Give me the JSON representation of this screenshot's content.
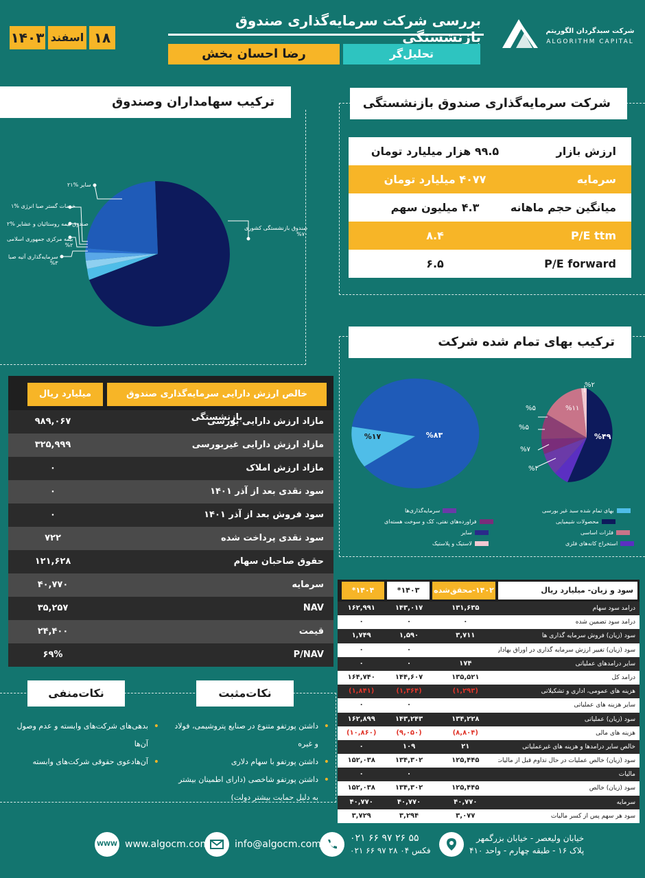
{
  "header": {
    "title": "بررسی  شرکت سرمایه‌گذاری صندوق بازنشستگی",
    "analyst_role": "تحلیل‌گر",
    "analyst_name": "رضا احسان بخش",
    "date_day": "۱۸",
    "date_month": "اسفند",
    "date_year": "۱۴۰۳",
    "logo_fa": "شرکت سبدگردان الگوریتم",
    "logo_en": "ALGORITHM CAPITAL"
  },
  "company_panel": {
    "title": "شرکت سرمایه‌گذاری صندوق بازنشستگی",
    "rows": [
      {
        "label": "ارزش بازار",
        "value": "۹۹.۵ هزار میلیارد تومان",
        "style": "w"
      },
      {
        "label": "سرمایه",
        "value": "۴۰۷۷ میلیارد تومان",
        "style": "y"
      },
      {
        "label": "میانگین حجم ماهانه",
        "value": "۴.۳ میلیون سهم",
        "style": "w"
      },
      {
        "label": "P/E ttm",
        "value": "۸.۴",
        "style": "y"
      },
      {
        "label": "P/E forward",
        "value": "۶.۵",
        "style": "w"
      }
    ]
  },
  "shareholders_panel": {
    "title": "ترکیب سهامداران وصندوق",
    "labels": [
      {
        "name": "سایر",
        "pct": "%۲۱"
      },
      {
        "name": "خدمات گستر صبا انرژی",
        "pct": "%۱"
      },
      {
        "name": "صندوق بیمه روستائیان و عشایر",
        "pct": "%۲"
      },
      {
        "name": "بیمه مرکزی جمهوری اسلامی",
        "pct": "%۲"
      },
      {
        "name": "سرمایه‌گذاری آتیه صبا",
        "pct": "%۳"
      },
      {
        "name": "صندوق بازنشستگی کشوری",
        "pct": "%۷۰"
      }
    ]
  },
  "cost_panel": {
    "title": "ترکیب بهای تمام شده شرکت",
    "left_pie": [
      {
        "label": "%۸۳",
        "color": "#1f5bb8"
      },
      {
        "label": "%۱۷",
        "color": "#4fbde8"
      }
    ],
    "right_pie": [
      {
        "label": "%۴۹",
        "color": "#0d1a5c"
      },
      {
        "label": "%۴",
        "color": "#5b2fc2"
      },
      {
        "label": "%۷",
        "color": "#6b3aa8"
      },
      {
        "label": "%۵",
        "color": "#7a2d7a"
      },
      {
        "label": "%۵",
        "color": "#8c3f74"
      },
      {
        "label": "%۱۱",
        "color": "#c87489"
      },
      {
        "label": "%۲",
        "color": "#f2c8d2"
      }
    ],
    "legend": [
      {
        "label": "بهای تمام شده سبد غیر بورسی",
        "color": "#4fbde8"
      },
      {
        "label": "سرمایه‌گذاری‌ها",
        "color": "#6b3aa8"
      },
      {
        "label": "محصولات شیمیایی",
        "color": "#0d1a5c"
      },
      {
        "label": "فراورده‌های نفتی، کک و سوخت هسته‌ای",
        "color": "#7a2d7a"
      },
      {
        "label": "فلزات اساسی",
        "color": "#c87489"
      },
      {
        "label": "سایر",
        "color": "#2a2a8a"
      },
      {
        "label": "استخراج کانه‌های فلزی",
        "color": "#5b2fc2"
      },
      {
        "label": "لاستیک و پلاستیک",
        "color": "#f2c8d2"
      }
    ]
  },
  "nav_table": {
    "header_label": "خالص ارزش دارایی سرمایه‌گذاری صندوق بازنشستگی",
    "header_unit": "میلیارد ریال",
    "rows": [
      {
        "label": "مازاد ارزش دارایی بورسی",
        "value": "۹۸۹,۰۶۷"
      },
      {
        "label": "مازاد ارزش دارایی غیربورسی",
        "value": "۳۲۵,۹۹۹"
      },
      {
        "label": "مازاد ارزش املاک",
        "value": "۰"
      },
      {
        "label": "سود نقدی بعد از  آذر ۱۴۰۱",
        "value": "۰"
      },
      {
        "label": "سود فروش بعد از آذر ۱۴۰۱",
        "value": "۰"
      },
      {
        "label": "سود نقدی پرداخت شده",
        "value": "۷۲۲"
      },
      {
        "label": "حقوق صاحبان سهام",
        "value": "۱۲۱,۶۲۸"
      },
      {
        "label": "سرمایه",
        "value": "۴۰,۷۷۰"
      },
      {
        "label": "NAV",
        "value": "۳۵,۲۵۷"
      },
      {
        "label": "قیمت",
        "value": "۲۴,۴۰۰"
      },
      {
        "label": "P/NAV",
        "value": "۶۹%"
      }
    ]
  },
  "pl_table": {
    "header_label": "سود و زیان- میلیارد ریال",
    "col1": "۱۴۰۲-محقق‌شده",
    "col2": "۱۴۰۳*",
    "col3": "۱۴۰۴*",
    "rows": [
      {
        "label": "درامد سود سهام",
        "a": "۱۳۱,۶۳۵",
        "b": "۱۴۳,۰۱۷",
        "c": "۱۶۲,۹۹۱",
        "neg": false
      },
      {
        "label": "درامد سود تضمین شده",
        "a": "۰",
        "b": "۰",
        "c": "۰",
        "neg": false
      },
      {
        "label": "سود (زیان) فروش سرمایه گذاری ها",
        "a": "۳,۷۱۱",
        "b": "۱,۵۹۰",
        "c": "۱,۷۴۹",
        "neg": false
      },
      {
        "label": "سود (زیان) تغییر ارزش سرمایه گذاری در اوراق بهادار",
        "a": "",
        "b": "۰",
        "c": "۰",
        "neg": false
      },
      {
        "label": "سایر درامدهای عملیاتی",
        "a": "۱۷۴",
        "b": "۰",
        "c": "۰",
        "neg": false
      },
      {
        "label": "درامد کل",
        "a": "۱۳۵,۵۲۱",
        "b": "۱۴۴,۶۰۷",
        "c": "۱۶۴,۷۴۰",
        "neg": false
      },
      {
        "label": "هزینه های عمومی، اداری و تشکیلاتی",
        "a": "(۱,۲۹۳)",
        "b": "(۱,۳۶۴)",
        "c": "(۱,۸۴۱)",
        "neg": true
      },
      {
        "label": "سایر هزینه های عملیاتی",
        "a": "",
        "b": "۰",
        "c": "۰",
        "neg": false
      },
      {
        "label": "سود (زیان) عملیاتی",
        "a": "۱۳۴,۲۲۸",
        "b": "۱۴۳,۲۴۳",
        "c": "۱۶۲,۸۹۹",
        "neg": false
      },
      {
        "label": "هزینه های مالی",
        "a": "(۸,۸۰۴)",
        "b": "(۹,۰۵۰)",
        "c": "(۱۰,۸۶۰)",
        "neg": true
      },
      {
        "label": "خالص سایر درامدها و هزینه های غیرعملیاتی",
        "a": "۲۱",
        "b": "۱۰۹",
        "c": "۰",
        "neg": false
      },
      {
        "label": "سود (زیان) خالص عملیات در حال تداوم قبل از مالیات",
        "a": "۱۲۵,۴۴۵",
        "b": "۱۳۴,۳۰۲",
        "c": "۱۵۲,۰۳۸",
        "neg": false
      },
      {
        "label": "مالیات",
        "a": "",
        "b": "۰",
        "c": "۰",
        "neg": false
      },
      {
        "label": "سود (زیان) خالص",
        "a": "۱۲۵,۴۴۵",
        "b": "۱۳۴,۳۰۲",
        "c": "۱۵۲,۰۳۸",
        "neg": false
      },
      {
        "label": "سرمایه",
        "a": "۴۰,۷۷۰",
        "b": "۴۰,۷۷۰",
        "c": "۴۰,۷۷۰",
        "neg": false
      },
      {
        "label": "سود هر سهم پس از کسر مالیات",
        "a": "۳,۰۷۷",
        "b": "۳,۲۹۴",
        "c": "۳,۷۲۹",
        "neg": false
      }
    ]
  },
  "notes": {
    "positive_title": "نکات‌مثبت",
    "negative_title": "نکات‌منفی",
    "positive": [
      "داشتن پورتفو متنوع در صنایع پتروشیمی، فولاد و غیره",
      "داشتن پورتفو با سهام دلاری",
      "داشتن پورتفو شاخصی (دارای اطمینان بیشتر به دلیل حمایت بیشتر دولت)"
    ],
    "negative": [
      "بدهی‌های شرکت‌های وابسته و عدم وصول آن‌ها",
      "آن‌هادعوی حقوقی شرکت‌های وابسته"
    ]
  },
  "footer": {
    "website": "www.algocm.com",
    "email": "info@algocm.com",
    "phone": "۰۲۱ ۶۶ ۹۷ ۲۶ ۵۵",
    "fax": "۰۲۱ ۶۶ ۹۷ ۲۸ ۰۴ فکس",
    "address_line1": "خیابان ولیعصر - خیابان بزرگمهر",
    "address_line2": "پلاک ۱۶ - طبقه چهارم - واحد ۴۱۰",
    "www_icon_text": "WWW"
  }
}
